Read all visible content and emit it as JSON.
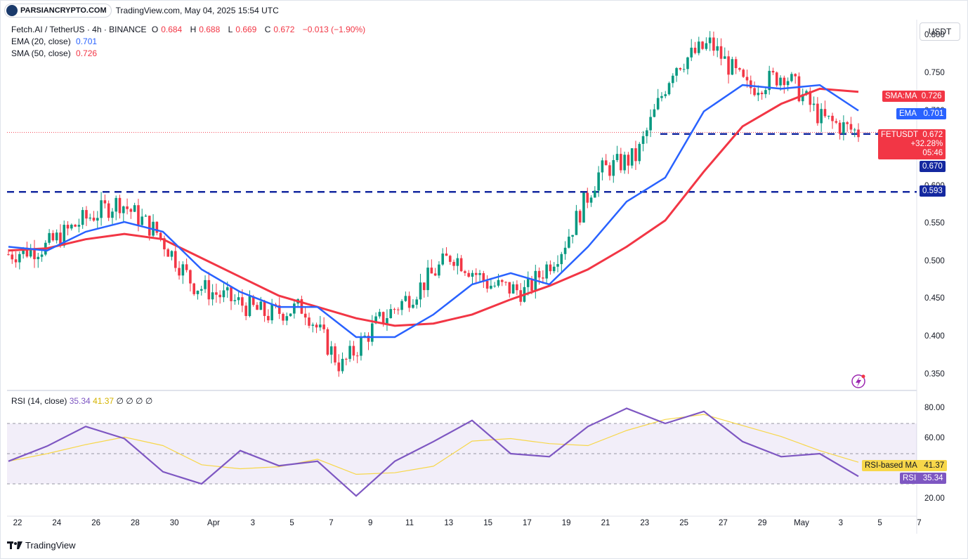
{
  "header": {
    "brand_badge": "PARSIANCRYPTO.COM",
    "source_line": "TradingView.com, May 04, 2025 15:54 UTC"
  },
  "legend": {
    "symbol_line": "Fetch.AI / TetherUS · 4h · BINANCE",
    "o_label": "O",
    "o_value": "0.684",
    "h_label": "H",
    "h_value": "0.688",
    "l_label": "L",
    "l_value": "0.669",
    "c_label": "C",
    "c_value": "0.672",
    "change": "−0.013 (−1.90%)",
    "ema_label": "EMA (20, close)",
    "ema_value": "0.701",
    "sma_label": "SMA (50, close)",
    "sma_value": "0.726"
  },
  "rsi_legend": {
    "label": "RSI (14, close)",
    "rsi_value": "35.34",
    "ma_value": "41.37",
    "extras": "∅ ∅ ∅ ∅"
  },
  "price_axis": {
    "unit_button": "USDT",
    "ticks": [
      "0.800",
      "0.750",
      "0.700",
      "0.650",
      "0.600",
      "0.550",
      "0.500",
      "0.450",
      "0.400",
      "0.350"
    ]
  },
  "rsi_axis": {
    "ticks": [
      "80.00",
      "60.00",
      "40.00",
      "20.00"
    ]
  },
  "tags": {
    "sma_tag": {
      "name": "SMA:MA",
      "value": "0.726"
    },
    "ema_tag": {
      "name": "EMA",
      "value": "0.701"
    },
    "price_tag": {
      "name": "FETUSDT",
      "value": "0.672",
      "change": "+32.28%",
      "countdown": "05:46"
    },
    "level_670": "0.670",
    "level_593": "0.593",
    "rsi_ma_tag": {
      "name": "RSI-based MA",
      "value": "41.37"
    },
    "rsi_tag": {
      "name": "RSI",
      "value": "35.34"
    }
  },
  "x_axis": {
    "labels": [
      "22",
      "24",
      "26",
      "28",
      "30",
      "Apr",
      "3",
      "5",
      "7",
      "9",
      "11",
      "13",
      "15",
      "17",
      "19",
      "21",
      "23",
      "25",
      "27",
      "29",
      "May",
      "3",
      "5",
      "7"
    ]
  },
  "footer": {
    "brand": "TradingView"
  },
  "colors": {
    "up": "#089981",
    "down": "#f23645",
    "ema": "#2962ff",
    "sma": "#f23645",
    "rsi": "#7e57c2",
    "rsi_ma": "#f7d74a",
    "level_line": "#1428a0"
  },
  "chart_data": {
    "type": "candlestick",
    "timeframe": "4h",
    "ylim": [
      0.33,
      0.82
    ],
    "horizontal_levels": [
      0.67,
      0.593
    ],
    "ema20_approx": {
      "x": [
        "Mar 21",
        "Mar 23",
        "Mar 25",
        "Mar 27",
        "Mar 29",
        "Mar 31",
        "Apr 2",
        "Apr 4",
        "Apr 6",
        "Apr 8",
        "Apr 10",
        "Apr 12",
        "Apr 14",
        "Apr 16",
        "Apr 18",
        "Apr 20",
        "Apr 22",
        "Apr 24",
        "Apr 26",
        "Apr 28",
        "Apr 30",
        "May 2",
        "May 4"
      ],
      "y": [
        0.52,
        0.515,
        0.54,
        0.553,
        0.54,
        0.49,
        0.46,
        0.44,
        0.44,
        0.4,
        0.4,
        0.43,
        0.47,
        0.485,
        0.47,
        0.52,
        0.58,
        0.612,
        0.7,
        0.735,
        0.73,
        0.735,
        0.701
      ]
    },
    "sma50_approx": {
      "x": [
        "Mar 21",
        "Mar 23",
        "Mar 25",
        "Mar 27",
        "Mar 29",
        "Mar 31",
        "Apr 2",
        "Apr 4",
        "Apr 6",
        "Apr 8",
        "Apr 10",
        "Apr 12",
        "Apr 14",
        "Apr 16",
        "Apr 18",
        "Apr 20",
        "Apr 22",
        "Apr 24",
        "Apr 26",
        "Apr 28",
        "Apr 30",
        "May 2",
        "May 4"
      ],
      "y": [
        0.515,
        0.518,
        0.53,
        0.537,
        0.53,
        0.505,
        0.48,
        0.455,
        0.44,
        0.425,
        0.415,
        0.418,
        0.43,
        0.45,
        0.468,
        0.49,
        0.52,
        0.555,
        0.62,
        0.68,
        0.71,
        0.73,
        0.726
      ]
    },
    "rsi_ylim": [
      10,
      90
    ],
    "rsi_band": [
      30,
      70
    ],
    "rsi_approx": {
      "x": [
        "Mar 21",
        "Mar 23",
        "Mar 25",
        "Mar 27",
        "Mar 29",
        "Mar 31",
        "Apr 2",
        "Apr 4",
        "Apr 6",
        "Apr 8",
        "Apr 10",
        "Apr 12",
        "Apr 14",
        "Apr 16",
        "Apr 18",
        "Apr 20",
        "Apr 22",
        "Apr 24",
        "Apr 26",
        "Apr 28",
        "Apr 30",
        "May 2",
        "May 4"
      ],
      "y": [
        45,
        55,
        68,
        60,
        38,
        30,
        52,
        42,
        45,
        22,
        45,
        58,
        72,
        50,
        48,
        68,
        80,
        70,
        78,
        58,
        48,
        50,
        35
      ]
    }
  }
}
